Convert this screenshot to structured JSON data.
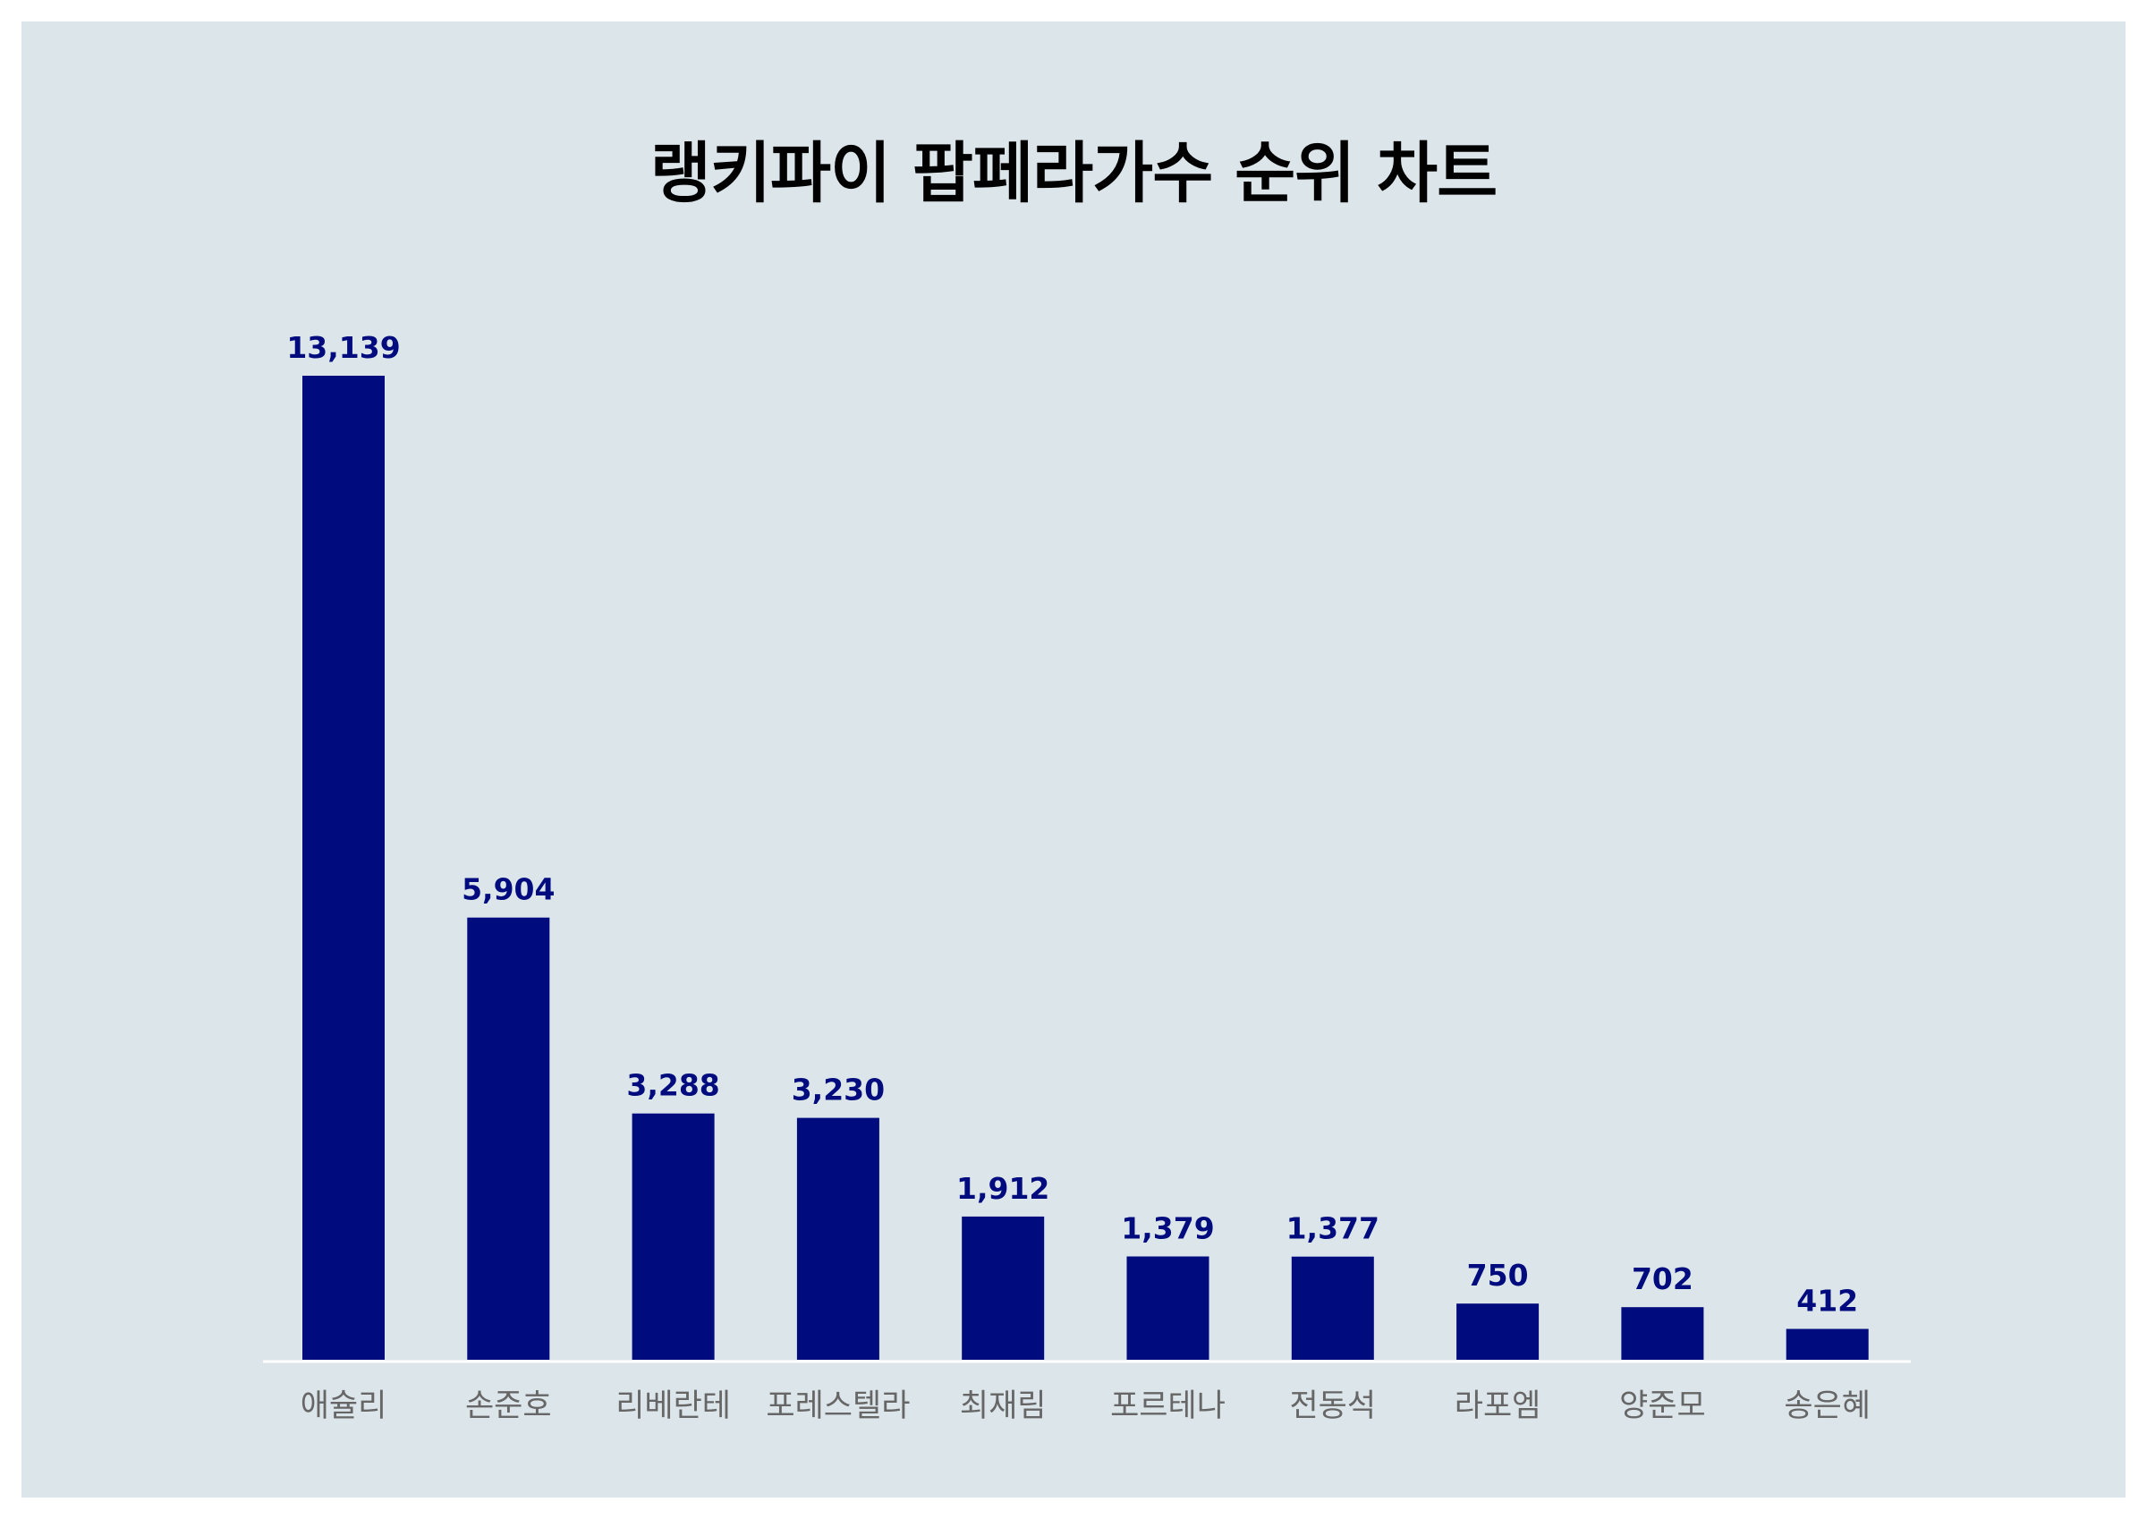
{
  "chart_data": {
    "type": "bar",
    "title": "랭키파이 팝페라가수 순위 차트",
    "categories": [
      "애슐리",
      "손준호",
      "리베란테",
      "포레스텔라",
      "최재림",
      "포르테나",
      "전동석",
      "라포엠",
      "양준모",
      "송은혜"
    ],
    "values": [
      13139,
      5904,
      3288,
      3230,
      1912,
      1379,
      1377,
      750,
      702,
      412
    ],
    "value_labels": [
      "13,139",
      "5,904",
      "3,288",
      "3,230",
      "1,912",
      "1,379",
      "1,377",
      "750",
      "702",
      "412"
    ],
    "ylim": [
      0,
      13139
    ],
    "grid": false,
    "legend": "none",
    "bar_color": "#000b7e",
    "label_color": "#000b7e",
    "background_color": "#dce6ea",
    "axis_color": "#ffffff",
    "category_label_color": "#666666"
  }
}
